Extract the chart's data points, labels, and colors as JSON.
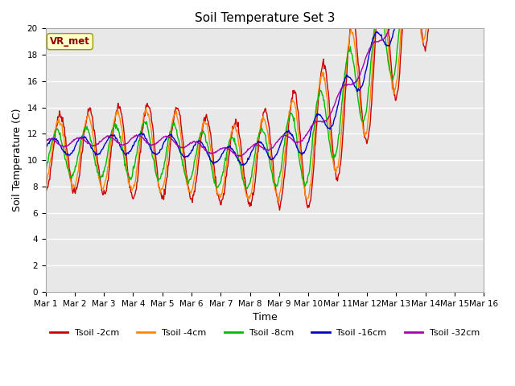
{
  "title": "Soil Temperature Set 3",
  "xlabel": "Time",
  "ylabel": "Soil Temperature (C)",
  "ylim": [
    0,
    20
  ],
  "yticks": [
    0,
    2,
    4,
    6,
    8,
    10,
    12,
    14,
    16,
    18,
    20
  ],
  "x_labels": [
    "Mar 1",
    "Mar 2",
    "Mar 3",
    "Mar 4",
    "Mar 5",
    "Mar 6",
    "Mar 7",
    "Mar 8",
    "Mar 9",
    "Mar 10",
    "Mar 11",
    "Mar 12",
    "Mar 13",
    "Mar 14",
    "Mar 15",
    "Mar 16"
  ],
  "n_days": 15,
  "annotation_text": "VR_met",
  "annotation_color": "#8b0000",
  "annotation_bg": "#ffffcc",
  "bg_color": "#d8d8d8",
  "plot_bg": "#e8e8e8",
  "colors": {
    "Tsoil -2cm": "#cc0000",
    "Tsoil -4cm": "#ff8800",
    "Tsoil -8cm": "#00bb00",
    "Tsoil -16cm": "#0000cc",
    "Tsoil -32cm": "#aa00aa"
  },
  "legend_labels": [
    "Tsoil -2cm",
    "Tsoil -4cm",
    "Tsoil -8cm",
    "Tsoil -16cm",
    "Tsoil -32cm"
  ]
}
